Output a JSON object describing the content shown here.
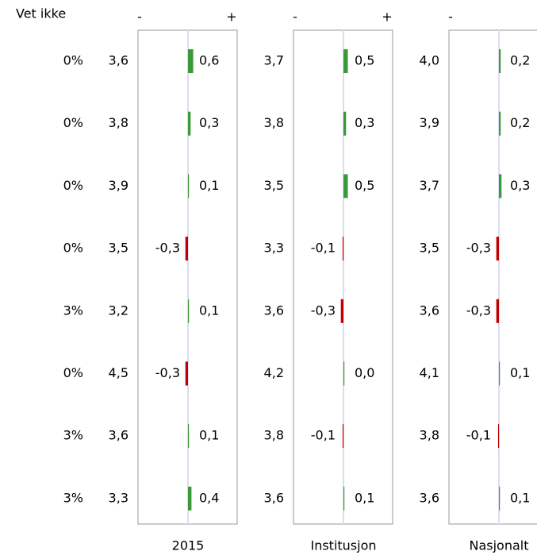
{
  "header": {
    "label": "Vet ikke"
  },
  "vet_ikke": [
    "0%",
    "0%",
    "0%",
    "0%",
    "3%",
    "0%",
    "3%",
    "3%"
  ],
  "panels": [
    {
      "label": "2015",
      "minus": "-",
      "plus": "+",
      "means": [
        "3,6",
        "3,8",
        "3,9",
        "3,5",
        "3,2",
        "4,5",
        "3,6",
        "3,3"
      ],
      "diffs": [
        0.6,
        0.3,
        0.1,
        -0.3,
        0.1,
        -0.3,
        0.1,
        0.4
      ],
      "diff_labels": [
        "0,6",
        "0,3",
        "0,1",
        "-0,3",
        "0,1",
        "-0,3",
        "0,1",
        "0,4"
      ]
    },
    {
      "label": "Institusjon",
      "minus": "-",
      "plus": "+",
      "means": [
        "3,7",
        "3,8",
        "3,5",
        "3,3",
        "3,6",
        "4,2",
        "3,8",
        "3,6"
      ],
      "diffs": [
        0.5,
        0.3,
        0.5,
        -0.1,
        -0.3,
        0.0,
        -0.1,
        0.1
      ],
      "diff_labels": [
        "0,5",
        "0,3",
        "0,5",
        "-0,1",
        "-0,3",
        "0,0",
        "-0,1",
        "0,1"
      ]
    },
    {
      "label": "Nasjonalt",
      "minus": "-",
      "means": [
        "4,0",
        "3,9",
        "3,7",
        "3,5",
        "3,6",
        "4,1",
        "3,8",
        "3,6"
      ],
      "diffs": [
        0.2,
        0.2,
        0.3,
        -0.3,
        -0.3,
        0.1,
        -0.1,
        0.1
      ],
      "diff_labels": [
        "0,2",
        "0,2",
        "0,3",
        "-0,3",
        "-0,3",
        "0,1",
        "-0,1",
        "0,1"
      ]
    }
  ],
  "colors": {
    "positive": "#3a9a3a",
    "negative": "#c00000"
  }
}
